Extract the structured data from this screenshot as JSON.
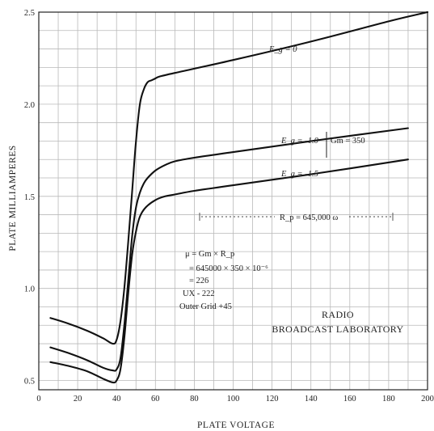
{
  "chart_data": {
    "type": "line",
    "title": "",
    "xlabel": "PLATE VOLTAGE",
    "ylabel": "PLATE MILLIAMPERES",
    "xlim": [
      0,
      200
    ],
    "ylim": [
      0.45,
      2.5
    ],
    "x_ticks": [
      0,
      20,
      40,
      60,
      80,
      100,
      120,
      140,
      160,
      180,
      200
    ],
    "x_tick_labels": [
      "0",
      "20",
      "40",
      "60",
      "80",
      "100",
      "120",
      "140",
      "160",
      "180",
      "200"
    ],
    "y_ticks": [
      0.5,
      1.0,
      1.5,
      2.0,
      2.5
    ],
    "y_tick_labels": [
      "0.5",
      "1.0",
      "1.5",
      "2.0",
      "2.5"
    ],
    "x_grid_step": 10,
    "y_grid_step": 0.1,
    "grid": true,
    "series": [
      {
        "name": "Eg = 0",
        "x": [
          6,
          15,
          25,
          33,
          38,
          40,
          42,
          44,
          46,
          48,
          50,
          52,
          54,
          56,
          58,
          60,
          62,
          70,
          100,
          140,
          180,
          200
        ],
        "y": [
          0.84,
          0.81,
          0.77,
          0.73,
          0.7,
          0.72,
          0.82,
          1.0,
          1.25,
          1.52,
          1.8,
          2.0,
          2.08,
          2.12,
          2.13,
          2.14,
          2.15,
          2.17,
          2.24,
          2.34,
          2.45,
          2.5
        ]
      },
      {
        "name": "Eg = -1.0",
        "x": [
          6,
          15,
          25,
          33,
          38,
          40,
          42,
          44,
          46,
          48,
          50,
          52,
          54,
          56,
          60,
          65,
          70,
          80,
          100,
          140,
          190
        ],
        "y": [
          0.68,
          0.65,
          0.61,
          0.57,
          0.555,
          0.56,
          0.62,
          0.8,
          1.04,
          1.28,
          1.44,
          1.52,
          1.57,
          1.6,
          1.64,
          1.67,
          1.69,
          1.71,
          1.74,
          1.8,
          1.87
        ]
      },
      {
        "name": "Eg = -1.5",
        "x": [
          6,
          15,
          25,
          33,
          38,
          40,
          42,
          44,
          46,
          48,
          50,
          52,
          55,
          60,
          65,
          70,
          80,
          100,
          140,
          190
        ],
        "y": [
          0.6,
          0.58,
          0.55,
          0.51,
          0.49,
          0.5,
          0.56,
          0.73,
          0.97,
          1.18,
          1.31,
          1.39,
          1.44,
          1.48,
          1.5,
          1.51,
          1.53,
          1.56,
          1.62,
          1.7
        ]
      }
    ],
    "labels": {
      "eg0": "E_g = 0",
      "eg1": "E_g = -1.0",
      "eg15": "E_g = -1.5",
      "gm": "Gm = 350",
      "rp": "R_p = 645,000 ω",
      "mu_line1": "μ = Gm × R_p",
      "mu_line2": "= 645000 × 350 × 10⁻⁶",
      "mu_line3": "= 226",
      "tube": "UX - 222",
      "grid_note": "Outer Grid +45",
      "lab_line1": "RADIO",
      "lab_line2": "BROADCAST LABORATORY"
    }
  }
}
